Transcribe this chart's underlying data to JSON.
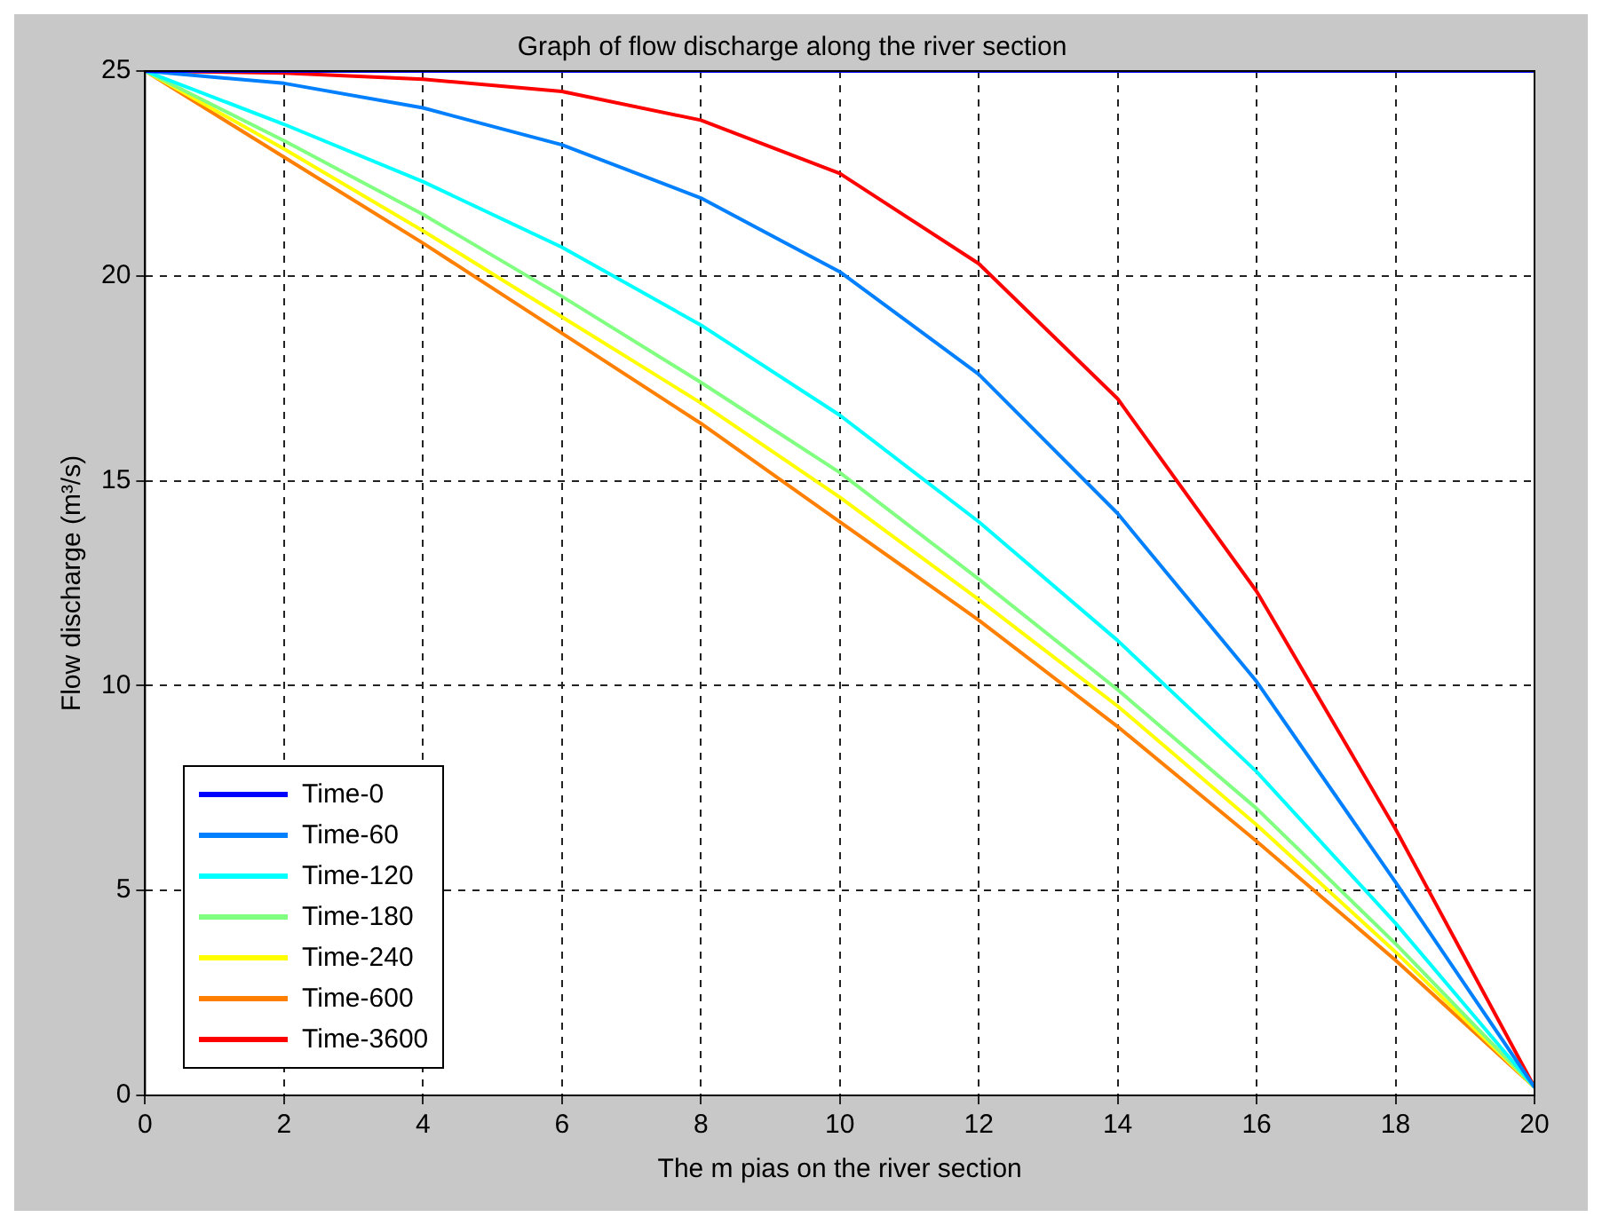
{
  "chart_data": {
    "type": "line",
    "title": "Graph of flow discharge along the river section",
    "xlabel": "The m pias on the river section",
    "ylabel": "Flow discharge (m³/s)",
    "x": [
      0,
      2,
      4,
      6,
      8,
      10,
      12,
      14,
      16,
      18,
      20
    ],
    "series": [
      {
        "name": "Time-0",
        "color": "#0000ff",
        "values": [
          25,
          25,
          25,
          25,
          25,
          25,
          25,
          25,
          25,
          25,
          25
        ]
      },
      {
        "name": "Time-60",
        "color": "#0080ff",
        "values": [
          25,
          24.7,
          24.1,
          23.2,
          21.9,
          20.1,
          17.6,
          14.2,
          10.1,
          5.2,
          0.2
        ]
      },
      {
        "name": "Time-120",
        "color": "#00ffff",
        "values": [
          25,
          23.7,
          22.3,
          20.7,
          18.8,
          16.6,
          14.0,
          11.1,
          7.9,
          4.2,
          0.2
        ]
      },
      {
        "name": "Time-180",
        "color": "#80ff80",
        "values": [
          25,
          23.3,
          21.5,
          19.5,
          17.4,
          15.2,
          12.6,
          9.9,
          7.0,
          3.7,
          0.2
        ]
      },
      {
        "name": "Time-240",
        "color": "#ffff00",
        "values": [
          25,
          23.1,
          21.1,
          19.0,
          16.9,
          14.6,
          12.1,
          9.5,
          6.6,
          3.5,
          0.2
        ]
      },
      {
        "name": "Time-600",
        "color": "#ff8000",
        "values": [
          25,
          22.9,
          20.8,
          18.6,
          16.4,
          14.0,
          11.6,
          9.0,
          6.2,
          3.3,
          0.2
        ]
      },
      {
        "name": "Time-3600",
        "color": "#ff0000",
        "values": [
          25,
          24.95,
          24.8,
          24.5,
          23.8,
          22.5,
          20.3,
          17.0,
          12.3,
          6.5,
          0.2
        ]
      }
    ],
    "xlim": [
      0,
      20
    ],
    "xticks": [
      0,
      2,
      4,
      6,
      8,
      10,
      12,
      14,
      16,
      18,
      20
    ],
    "ylim": [
      0,
      25
    ],
    "yticks": [
      0,
      5,
      10,
      15,
      20,
      25
    ],
    "grid": true,
    "legend": "bottom left",
    "marker": "none",
    "line_style": "solid"
  }
}
